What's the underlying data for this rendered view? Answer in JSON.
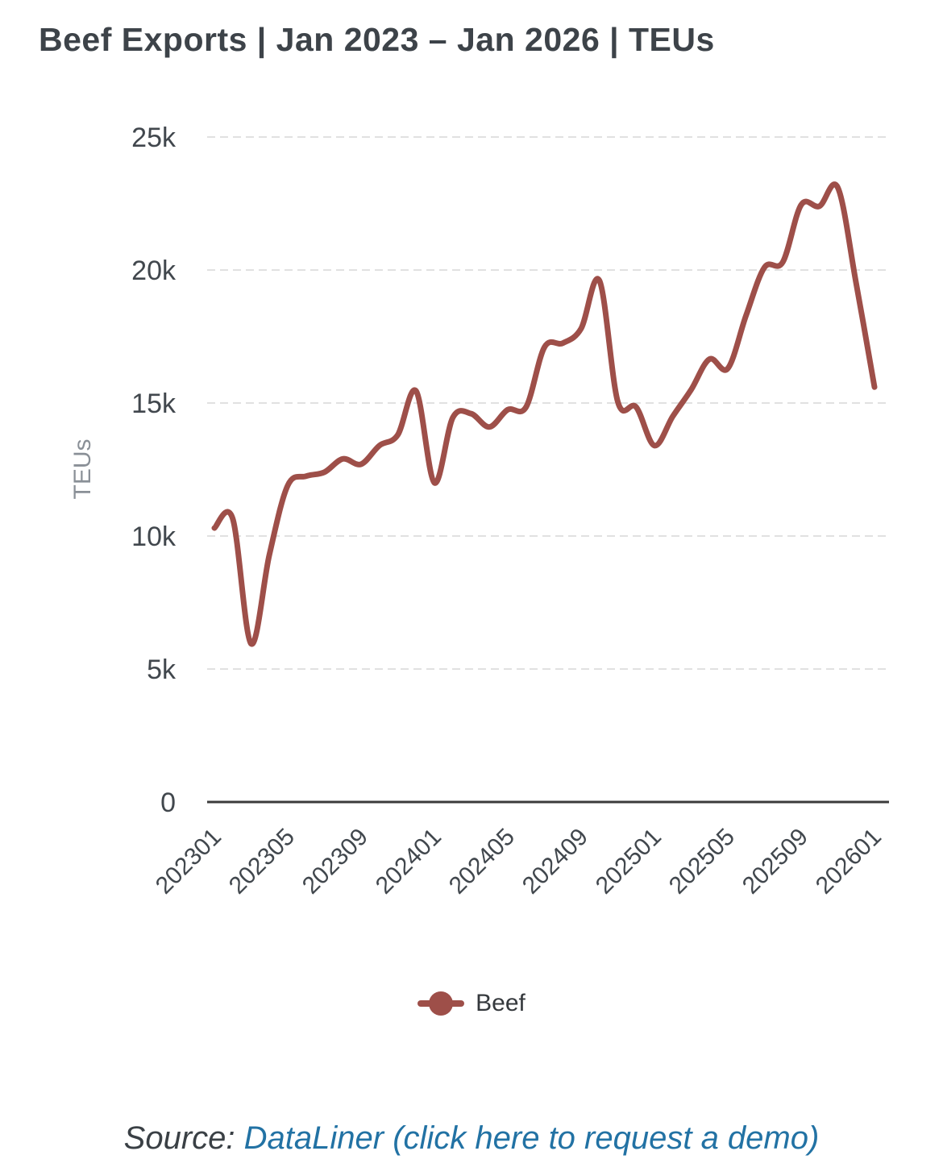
{
  "title": "Beef Exports | Jan 2023 – Jan 2026 | TEUs",
  "chart_data": {
    "type": "line",
    "title": "Beef Exports | Jan 2023 – Jan 2026 | TEUs",
    "x": [
      "202301",
      "202302",
      "202303",
      "202304",
      "202305",
      "202306",
      "202307",
      "202308",
      "202309",
      "202310",
      "202311",
      "202312",
      "202401",
      "202402",
      "202403",
      "202404",
      "202405",
      "202406",
      "202407",
      "202408",
      "202409",
      "202410",
      "202411",
      "202412",
      "202501",
      "202502",
      "202503",
      "202504",
      "202505",
      "202506",
      "202507",
      "202508",
      "202509",
      "202510",
      "202511",
      "202512",
      "202601"
    ],
    "x_tick_labels": [
      "202301",
      "202305",
      "202309",
      "202401",
      "202405",
      "202409",
      "202501",
      "202505",
      "202509",
      "202601"
    ],
    "series": [
      {
        "name": "Beef",
        "color": "#9e4f49",
        "values": [
          10300,
          10650,
          5950,
          9300,
          11900,
          12250,
          12400,
          12900,
          12700,
          13400,
          13800,
          15450,
          12000,
          14450,
          14600,
          14100,
          14750,
          14850,
          17100,
          17250,
          17800,
          19600,
          15050,
          14850,
          13400,
          14500,
          15500,
          16650,
          16300,
          18300,
          20100,
          20300,
          22450,
          22400,
          23100,
          19500,
          15600
        ]
      }
    ],
    "xlabel": "",
    "ylabel": "TEUs",
    "ylim": [
      0,
      25000
    ],
    "y_ticks": [
      0,
      5000,
      10000,
      15000,
      20000,
      25000
    ],
    "y_tick_labels": [
      "0",
      "5k",
      "10k",
      "15k",
      "20k",
      "25k"
    ],
    "grid": "horizontal-dashed",
    "legend_position": "bottom",
    "line_smooth": true
  },
  "colors": {
    "series": "#9e4f49",
    "axis_line": "#3b3b3b",
    "grid_line": "#e1e1e1",
    "tick_label": "#41474d",
    "axis_name": "#8a9097",
    "title_text": "#3d4349",
    "source_link": "#2272a4"
  },
  "legend": {
    "items": [
      {
        "label": "Beef",
        "color": "#9e4f49"
      }
    ]
  },
  "source": {
    "prefix": "Source: ",
    "link_text": "DataLiner (click here to request a demo)",
    "link_color": "#2272a4"
  }
}
